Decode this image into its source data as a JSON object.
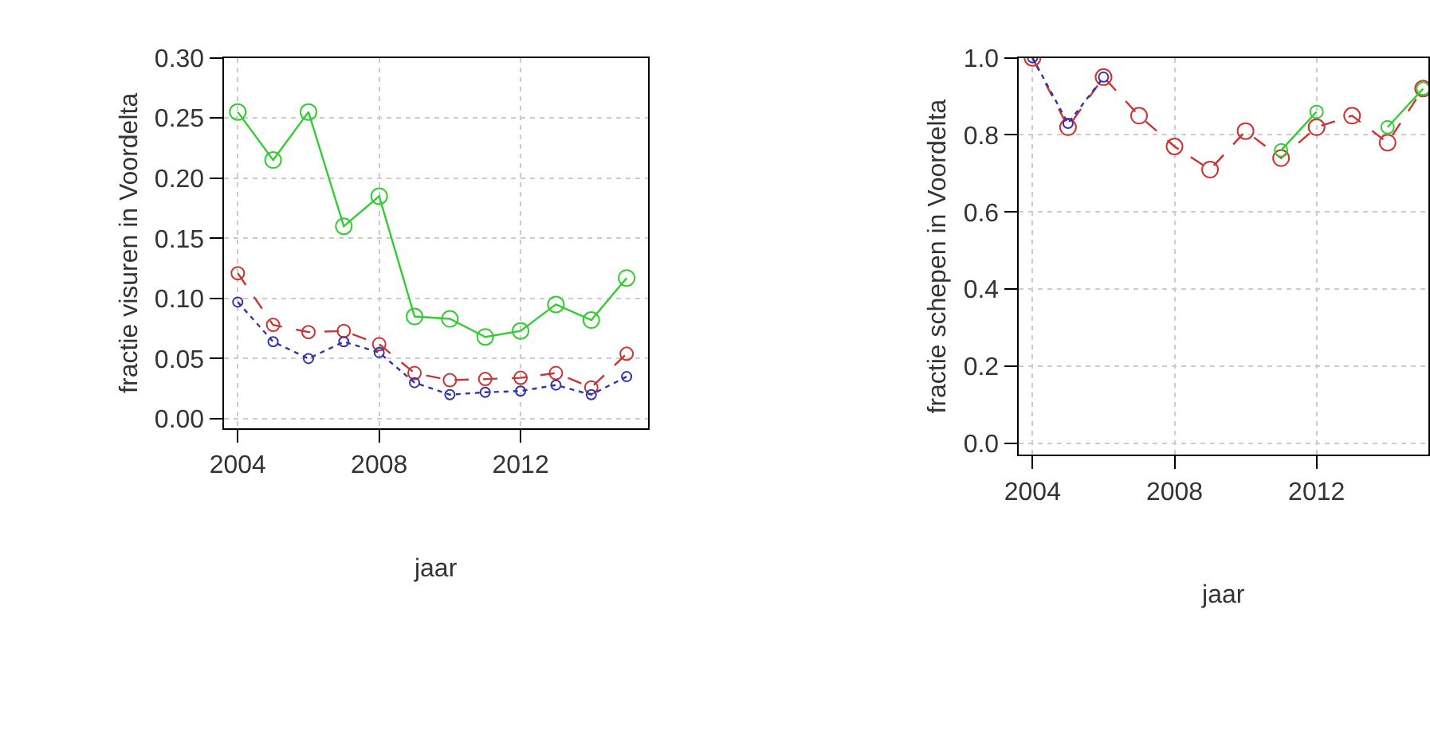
{
  "chart_data": [
    {
      "type": "line",
      "xlabel": "jaar",
      "ylabel": "fractie visuren in Voordelta",
      "x": [
        2004,
        2005,
        2006,
        2007,
        2008,
        2009,
        2010,
        2011,
        2012,
        2013,
        2014,
        2015
      ],
      "series": [
        {
          "color": "#33cc33",
          "line_style": "solid",
          "values": [
            0.255,
            0.215,
            0.255,
            0.16,
            0.185,
            0.085,
            0.083,
            0.068,
            0.073,
            0.095,
            0.082,
            0.117
          ]
        },
        {
          "color": "#cc3333",
          "line_style": "dashed",
          "values": [
            0.121,
            0.078,
            0.072,
            0.073,
            0.062,
            0.038,
            0.032,
            0.033,
            0.034,
            0.038,
            0.026,
            0.054
          ]
        },
        {
          "color": "#3333aa",
          "line_style": "dotted",
          "values": [
            0.097,
            0.064,
            0.05,
            0.064,
            0.055,
            0.03,
            0.02,
            0.022,
            0.023,
            0.028,
            0.02,
            0.035
          ]
        }
      ],
      "xlim": [
        2003.6,
        2015.6
      ],
      "xticks": [
        2004,
        2008,
        2012
      ],
      "ylim": [
        -0.008,
        0.3
      ],
      "yticks": [
        {
          "value": 0,
          "label": "0.00"
        },
        {
          "value": 0.05,
          "label": "0.05"
        },
        {
          "value": 0.1,
          "label": "0.10"
        },
        {
          "value": 0.15,
          "label": "0.15"
        },
        {
          "value": 0.2,
          "label": "0.20"
        },
        {
          "value": 0.25,
          "label": "0.25"
        },
        {
          "value": 0.3,
          "label": "0.30"
        }
      ],
      "grid": true,
      "marker": "circle"
    },
    {
      "type": "line",
      "xlabel": "jaar",
      "ylabel": "fractie schepen in Voordelta",
      "x": [
        2004,
        2005,
        2006,
        2007,
        2008,
        2009,
        2010,
        2011,
        2012,
        2013,
        2014,
        2015
      ],
      "series": [
        {
          "color": "#cc3333",
          "line_style": "dashed",
          "values": [
            1.0,
            0.82,
            0.95,
            0.85,
            0.77,
            0.71,
            0.81,
            0.74,
            0.82,
            0.85,
            0.78,
            0.92
          ]
        },
        {
          "color": "#33cc33",
          "line_style": "solid",
          "values": [
            null,
            null,
            null,
            null,
            null,
            null,
            null,
            0.76,
            0.86,
            null,
            0.82,
            0.92
          ]
        },
        {
          "color": "#3333aa",
          "line_style": "dotted",
          "values": [
            1.0,
            0.83,
            0.95,
            null,
            null,
            null,
            null,
            null,
            null,
            null,
            null,
            null
          ]
        }
      ],
      "xlim": [
        2003.6,
        2015.15
      ],
      "xticks": [
        2004,
        2008,
        2012
      ],
      "ylim": [
        -0.03,
        1.0
      ],
      "yticks": [
        {
          "value": 0,
          "label": "0.0"
        },
        {
          "value": 0.2,
          "label": "0.2"
        },
        {
          "value": 0.4,
          "label": "0.4"
        },
        {
          "value": 0.6,
          "label": "0.6"
        },
        {
          "value": 0.8,
          "label": "0.8"
        },
        {
          "value": 1.0,
          "label": "1.0"
        }
      ],
      "grid": true,
      "marker": "circle"
    }
  ]
}
